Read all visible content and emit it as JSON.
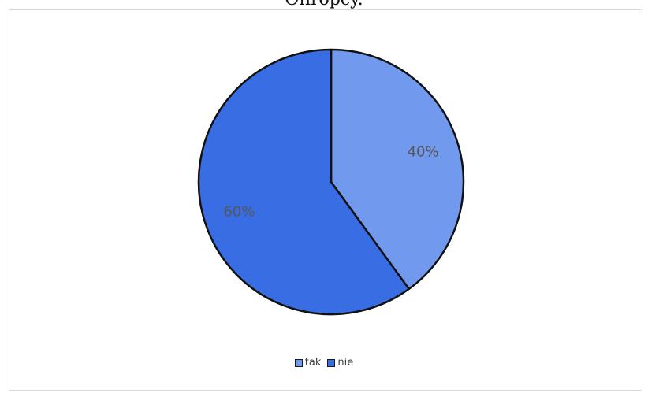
{
  "caption": "Ofiropcy.",
  "chart_data": {
    "type": "pie",
    "title": "",
    "slices": [
      {
        "label": "tak",
        "value": 40,
        "data_label": "40%",
        "color": "#7199ee"
      },
      {
        "label": "nie",
        "value": 60,
        "data_label": "60%",
        "color": "#396de3"
      }
    ],
    "legend": {
      "position": "bottom",
      "entries": [
        "tak",
        "nie"
      ]
    },
    "start_angle_deg": 0,
    "direction": "clockwise",
    "outline_color": "#111111",
    "label_color": "#555555"
  }
}
